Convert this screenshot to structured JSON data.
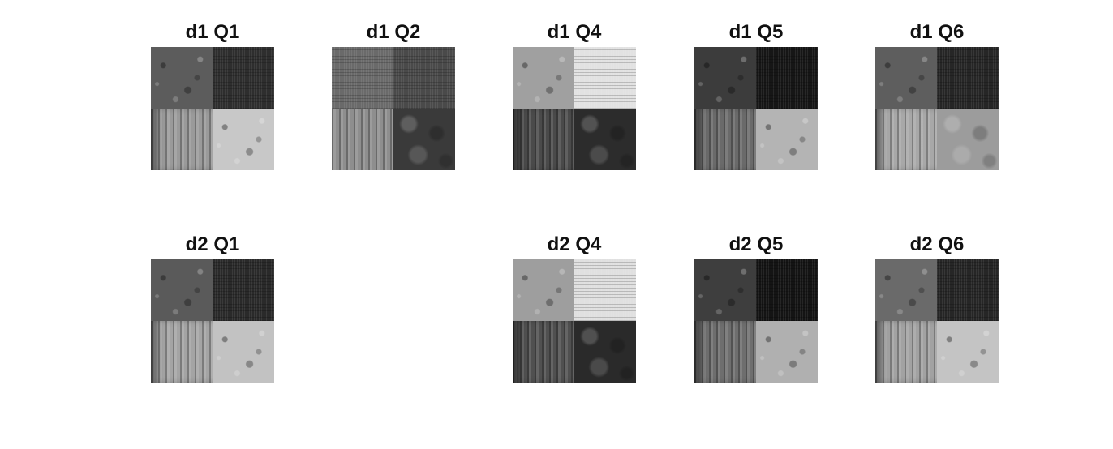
{
  "figure": {
    "panels": [
      {
        "id": "d1q1",
        "title": "d1 Q1",
        "quadrants": {
          "tl": "#5c5c5c",
          "tr": "#2e2e2e",
          "bl": "#9a9a9a",
          "br": "#c8c8c8"
        }
      },
      {
        "id": "d1q2",
        "title": "d1 Q2",
        "quadrants": {
          "tl": "#6a6a6a",
          "tr": "#4a4a4a",
          "bl": "#8e8e8e",
          "br": "#3a3a3a"
        }
      },
      {
        "id": "d1q4",
        "title": "d1 Q4",
        "quadrants": {
          "tl": "#a0a0a0",
          "tr": "#e2e2e2",
          "bl": "#4a4a4a",
          "br": "#2c2c2c"
        }
      },
      {
        "id": "d1q5",
        "title": "d1 Q5",
        "quadrants": {
          "tl": "#3c3c3c",
          "tr": "#161616",
          "bl": "#6a6a6a",
          "br": "#b4b4b4"
        }
      },
      {
        "id": "d1q6",
        "title": "d1 Q6",
        "quadrants": {
          "tl": "#5e5e5e",
          "tr": "#262626",
          "bl": "#a8a8a8",
          "br": "#9c9c9c"
        }
      },
      {
        "id": "d2q1",
        "title": "d2 Q1",
        "quadrants": {
          "tl": "#5a5a5a",
          "tr": "#2a2a2a",
          "bl": "#a4a4a4",
          "br": "#c2c2c2"
        }
      },
      {
        "id": "d2q4",
        "title": "d2 Q4",
        "quadrants": {
          "tl": "#9e9e9e",
          "tr": "#e0e0e0",
          "bl": "#505050",
          "br": "#2a2a2a"
        }
      },
      {
        "id": "d2q5",
        "title": "d2 Q5",
        "quadrants": {
          "tl": "#3e3e3e",
          "tr": "#141414",
          "bl": "#6e6e6e",
          "br": "#b0b0b0"
        }
      },
      {
        "id": "d2q6",
        "title": "d2 Q6",
        "quadrants": {
          "tl": "#6a6a6a",
          "tr": "#262626",
          "bl": "#a2a2a2",
          "br": "#c4c4c4"
        }
      }
    ]
  }
}
